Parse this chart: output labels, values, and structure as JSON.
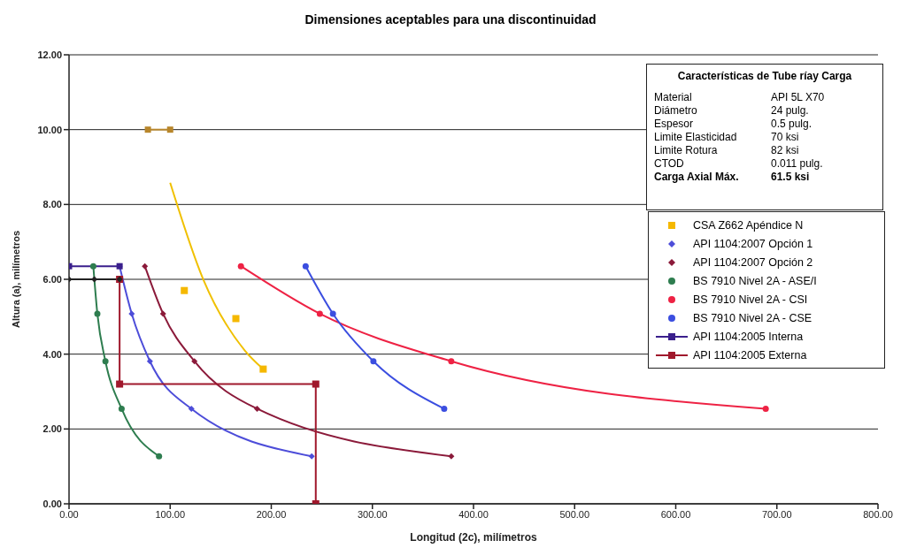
{
  "chart_data": {
    "type": "line",
    "title": "Dimensiones aceptables para una discontinuidad",
    "xlabel": "Longitud (2c), milímetros",
    "ylabel": "Altura (a), milímetros",
    "xlim": [
      0,
      800
    ],
    "xticks": [
      {
        "value": 0,
        "label": "0.00"
      },
      {
        "value": 100,
        "label": "100.00"
      },
      {
        "value": 200,
        "label": "200.00"
      },
      {
        "value": 300,
        "label": "300.00"
      },
      {
        "value": 400,
        "label": "400.00"
      },
      {
        "value": 500,
        "label": "500.00"
      },
      {
        "value": 600,
        "label": "600.00"
      },
      {
        "value": 700,
        "label": "700.00"
      },
      {
        "value": 800,
        "label": "800.00"
      }
    ],
    "ylim": [
      0,
      12
    ],
    "yticks": [
      {
        "value": 0,
        "label": "0.00"
      },
      {
        "value": 2,
        "label": "2.00"
      },
      {
        "value": 4,
        "label": "4.00"
      },
      {
        "value": 6,
        "label": "6.00"
      },
      {
        "value": 8,
        "label": "8.00"
      },
      {
        "value": 10,
        "label": "10.00"
      },
      {
        "value": 12,
        "label": "12.00"
      }
    ],
    "grid": "y",
    "legend": "right",
    "annotations": [
      "Características de Tube ríay Carga",
      "Material",
      "API 5L X70",
      "Diámetro",
      "24 pulg.",
      "Espesor",
      "0.5 pulg.",
      "Limite Elasticidad",
      "70 ksi",
      "Limite Rotura",
      "82 ksi",
      "CTOD",
      "0.011 pulg.",
      "Carga Axial Máx.",
      "61.5 ksi"
    ],
    "series": [
      {
        "name": "CSA Z662 Apéndice N",
        "type": "scatter",
        "marker": "square",
        "color": "#f5b800",
        "x": [
          114,
          165,
          192
        ],
        "values": [
          5.7,
          4.95,
          3.6
        ]
      },
      {
        "name": "API 1104:2007  Opción 1",
        "marker": "diamond",
        "color": "#4d4dd9",
        "x": [
          50,
          62,
          80,
          121,
          240
        ],
        "values": [
          6.35,
          5.08,
          3.81,
          2.54,
          1.27
        ]
      },
      {
        "name": "API 1104:2007  Opción 2",
        "marker": "diamond",
        "color": "#8b1a3a",
        "x": [
          75,
          93,
          124,
          186,
          378
        ],
        "values": [
          6.35,
          5.08,
          3.81,
          2.54,
          1.27
        ]
      },
      {
        "name": "BS 7910 Nivel 2A - ASE/I",
        "marker": "circle",
        "color": "#2e7d4f",
        "x": [
          24,
          28,
          36,
          52,
          89
        ],
        "values": [
          6.35,
          5.08,
          3.81,
          2.54,
          1.27
        ]
      },
      {
        "name": "BS 7910 Nivel 2A - CSI",
        "marker": "circle",
        "color": "#ee2244",
        "x": [
          170,
          248,
          378,
          689
        ],
        "values": [
          6.35,
          5.08,
          3.81,
          2.54
        ]
      },
      {
        "name": "BS 7910 Nivel 2A - CSE",
        "marker": "circle",
        "color": "#3b4ee0",
        "x": [
          234,
          261,
          301,
          371
        ],
        "values": [
          6.35,
          5.08,
          3.81,
          2.54
        ]
      },
      {
        "name": "API 1104:2005  Interna",
        "marker": "square",
        "color": "#3a1f8c",
        "x": [
          0,
          50
        ],
        "values": [
          6.35,
          6.35
        ]
      },
      {
        "name": "API 1104:2005  Externa",
        "type": "step",
        "marker": "square",
        "color": "#a0182c",
        "x": [
          50,
          50,
          244,
          244
        ],
        "values": [
          6.0,
          3.2,
          3.2,
          0
        ]
      },
      {
        "marker": "none",
        "color": "#f0c000",
        "x": [
          100,
          133,
          174,
          192
        ],
        "values": [
          8.58,
          5.98,
          4.09,
          3.6
        ]
      },
      {
        "marker": "square",
        "color": "#b8862b",
        "x": [
          78,
          100
        ],
        "values": [
          10,
          10
        ]
      },
      {
        "marker": "diamond",
        "color": "#222222",
        "x": [
          0,
          25,
          50
        ],
        "values": [
          6.0,
          6.0,
          6.0
        ]
      }
    ]
  }
}
